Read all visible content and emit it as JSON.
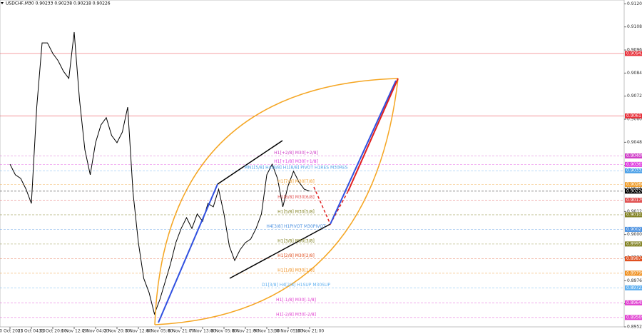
{
  "chart_data": {
    "type": "line",
    "title": "USDCHF,M30 0.90233 0.90238 0.90218 0.90226",
    "categories": [
      "30 Oct 2023",
      null,
      null,
      null,
      "31 Oct 04:00",
      null,
      null,
      null,
      "31 Oct 20:00",
      null,
      null,
      null,
      "1 Nov 12:00",
      null,
      null,
      null,
      "2 Nov 04:00",
      null,
      null,
      null,
      "2 Nov 20:00",
      null,
      null,
      null,
      "3 Nov 12:00",
      null,
      null,
      null,
      "6 Nov 05:00",
      null,
      null,
      null,
      "6 Nov 21:00",
      null,
      null,
      null,
      "7 Nov 13:00",
      null,
      null,
      null,
      "8 Nov 05:00",
      null,
      null,
      null,
      "8 Nov 21:00",
      null,
      null,
      null,
      "9 Nov 13:00",
      null,
      null,
      null,
      "10 Nov 05:00",
      null,
      null,
      null,
      "10 Nov 21:00"
    ],
    "series": [
      {
        "color": "#000000",
        "values": [
          0.90366,
          0.90311,
          0.90292,
          0.90236,
          0.90162,
          0.90663,
          0.90997,
          0.90997,
          0.90942,
          0.90904,
          0.90849,
          0.90812,
          0.91053,
          0.907,
          0.90441,
          0.90311,
          0.90478,
          0.9057,
          0.90608,
          0.90515,
          0.90478,
          0.90533,
          0.90663,
          0.90218,
          0.89958,
          0.89772,
          0.89698,
          0.89587,
          0.89661,
          0.89754,
          0.89847,
          0.89958,
          0.90032,
          0.90088,
          0.90032,
          0.90107,
          0.90069,
          0.90162,
          0.90144,
          0.90236,
          0.90107,
          0.8994,
          0.89865,
          0.89921,
          0.89958,
          0.89977,
          0.90032,
          0.90107,
          0.90311,
          0.90366,
          0.90292,
          0.90144,
          0.90255,
          0.90329,
          0.90274,
          0.90236,
          0.90226
        ]
      }
    ],
    "ylim": [
      0.8952,
      0.9122
    ],
    "yticks": [
      {
        "value": 0.912,
        "label": "0.91200"
      },
      {
        "value": 0.9108,
        "label": "0.91080"
      },
      {
        "value": 0.9096,
        "label": "0.90960"
      },
      {
        "value": 0.9084,
        "label": "0.90840"
      },
      {
        "value": 0.9072,
        "label": "0.90720"
      },
      {
        "value": 0.906,
        "label": "0.90600"
      },
      {
        "value": 0.9048,
        "label": "0.90480"
      },
      {
        "value": 0.9036,
        "label": "0.90360"
      },
      {
        "value": 0.9024,
        "label": "0.90240"
      },
      {
        "value": 0.9012,
        "label": "0.90120"
      },
      {
        "value": 0.9,
        "label": "0.90000"
      },
      {
        "value": 0.8988,
        "label": "0.89880"
      },
      {
        "value": 0.8976,
        "label": "0.89760"
      },
      {
        "value": 0.8964,
        "label": "0.89640"
      },
      {
        "value": 0.8952,
        "label": "0.89520"
      }
    ],
    "levels": [
      {
        "value": 0.90942,
        "label": "0.90942",
        "color": "#e8303a"
      },
      {
        "value": 0.90617,
        "label": "0.90617",
        "color": "#e8303a"
      },
      {
        "value": 0.90409,
        "label": "0.90409",
        "color": "#d040c8",
        "text": "H1[+2/8] M30[+2/8]"
      },
      {
        "value": 0.90365,
        "label": "0.90365",
        "color": "#e040e0",
        "text": "H1[+1/8] M30[+1/8]"
      },
      {
        "value": 0.90332,
        "label": "0.90332",
        "color": "#4aa0e8",
        "text": "MN1[5/8] H4[8/8] H1[8/8] PIVOT H1RES M30RES"
      },
      {
        "value": 0.9026,
        "label": "0.90260",
        "color": "#f0a030",
        "text": "H1[7/8] M30[7/8]"
      },
      {
        "value": 0.90226,
        "label": "0.90226",
        "color": "#000000"
      },
      {
        "value": 0.90179,
        "label": "0.90179",
        "color": "#e05050",
        "text": "H1[6/8] M30[6/8]"
      },
      {
        "value": 0.90103,
        "label": "0.90103",
        "color": "#808020",
        "text": "H1[5/8] M30[5/8]"
      },
      {
        "value": 0.90027,
        "label": "0.90027",
        "color": "#4a90e0",
        "text": "H4[3/8] H1PIVOT M30PIVOT"
      },
      {
        "value": 0.89951,
        "label": "0.89951",
        "color": "#808020",
        "text": "H1[3/8] M30[3/8]"
      },
      {
        "value": 0.89874,
        "label": "0.89874",
        "color": "#e05020",
        "text": "H1[2/8] M30[2/8]"
      },
      {
        "value": 0.89799,
        "label": "0.89799",
        "color": "#f09020",
        "text": "H1[1/8] M30[1/8]"
      },
      {
        "value": 0.89723,
        "label": "0.89723",
        "color": "#60b0f0",
        "text": "D1[3/8] H4[2/8] H1SUP M30SUP"
      },
      {
        "value": 0.89645,
        "label": "0.89645",
        "color": "#e040d0",
        "text": "H1[-1/8] M30[-1/8]"
      },
      {
        "value": 0.89569,
        "label": "0.89569",
        "color": "#e040d0",
        "text": "H1[-2/8] M30[-2/8]"
      }
    ]
  }
}
